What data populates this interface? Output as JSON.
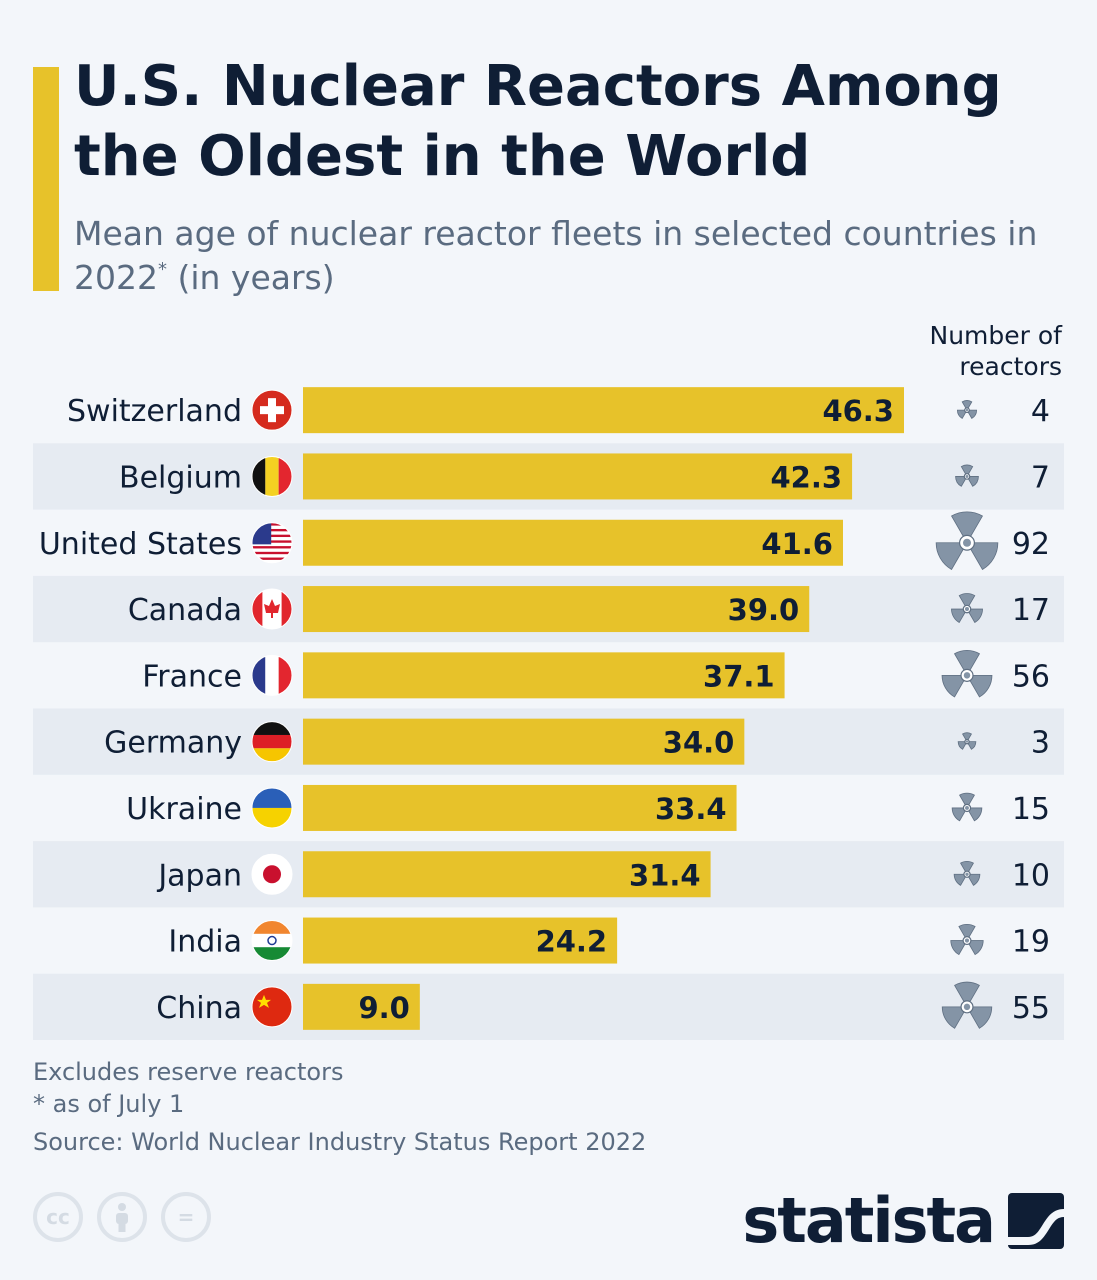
{
  "header": {
    "title": "U.S. Nuclear Reactors Among the Oldest in the World",
    "subtitle_main": "Mean age of nuclear reactor fleets in selected countries in 2022",
    "subtitle_mark": "*",
    "subtitle_tail": " (in years)"
  },
  "column_header": {
    "line1": "Number of",
    "line2": "reactors"
  },
  "chart_data": {
    "type": "bar",
    "orientation": "horizontal",
    "title": "U.S. Nuclear Reactors Among the Oldest in the World",
    "categories": [
      "Switzerland",
      "Belgium",
      "United States",
      "Canada",
      "France",
      "Germany",
      "Ukraine",
      "Japan",
      "India",
      "China"
    ],
    "values": [
      46.3,
      42.3,
      41.6,
      39.0,
      37.1,
      34.0,
      33.4,
      31.4,
      24.2,
      9.0
    ],
    "value_labels": [
      "46.3",
      "42.3",
      "41.6",
      "39.0",
      "37.1",
      "34.0",
      "33.4",
      "31.4",
      "24.2",
      "9.0"
    ],
    "reactor_counts": [
      4,
      7,
      92,
      17,
      56,
      3,
      15,
      10,
      19,
      55
    ],
    "flags": [
      "switzerland-flag-icon",
      "belgium-flag-icon",
      "united-states-flag-icon",
      "canada-flag-icon",
      "france-flag-icon",
      "germany-flag-icon",
      "ukraine-flag-icon",
      "japan-flag-icon",
      "india-flag-icon",
      "china-flag-icon"
    ],
    "reactor_icon": "radiation-icon",
    "xlim": [
      0,
      46.3
    ],
    "bar_color": "#e7c22a",
    "row_alt_color": "#e6ebf2"
  },
  "footer": {
    "note": "Excludes reserve reactors",
    "asterisk_note": "* as of July 1",
    "source": "Source: World Nuclear Industry Status Report 2022",
    "brand": "statista",
    "license_icons": [
      "cc-icon",
      "person-icon",
      "equal-icon"
    ],
    "license_labels": [
      "cc",
      "",
      "="
    ]
  }
}
